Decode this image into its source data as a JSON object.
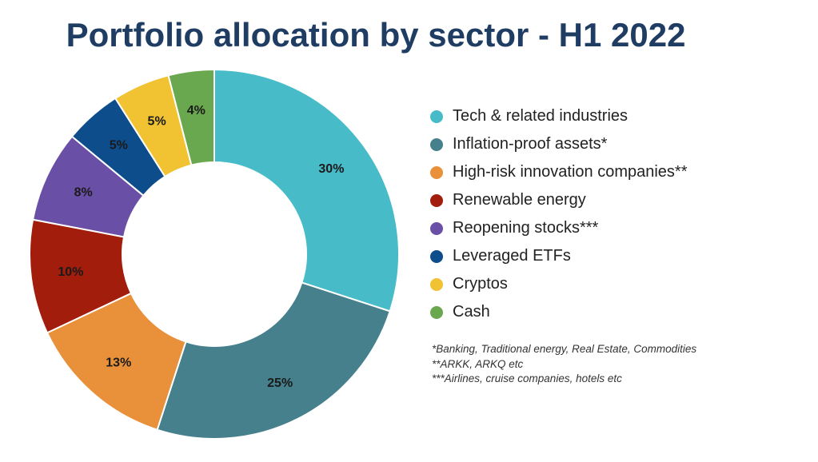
{
  "chart_data": {
    "type": "pie",
    "title": "Portfolio allocation by sector - H1 2022",
    "categories": [
      "Tech & related industries",
      "Inflation-proof assets*",
      "High-risk innovation companies**",
      "Renewable energy",
      "Reopening stocks***",
      "Leveraged ETFs",
      "Cryptos",
      "Cash"
    ],
    "values": [
      30,
      25,
      13,
      10,
      8,
      5,
      5,
      4
    ],
    "value_labels": [
      "30%",
      "25%",
      "13%",
      "10%",
      "8%",
      "5%",
      "5%",
      "4%"
    ],
    "colors": [
      "#47bcc8",
      "#46808c",
      "#e8913a",
      "#a31d0c",
      "#6a4fa6",
      "#0e4d8c",
      "#f1c232",
      "#6aa84f"
    ],
    "donut": true,
    "legend_placement": "right"
  },
  "footnotes": [
    "*Banking, Traditional energy, Real Estate, Commodities",
    "**ARKK, ARKQ etc",
    "***Airlines, cruise companies, hotels etc"
  ]
}
